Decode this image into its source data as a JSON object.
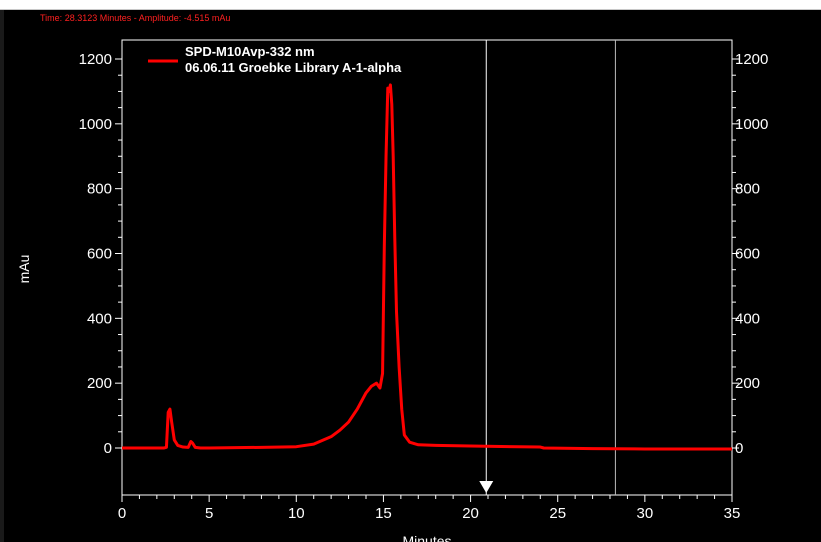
{
  "status": {
    "time_label": "Time:",
    "time_value": "28.3123 Minutes",
    "separator": "-",
    "amplitude_label": "Amplitude:",
    "amplitude_value": "-4.515 mAu"
  },
  "chart_data": {
    "type": "line",
    "title": "",
    "xlabel": "Minutes",
    "ylabel": "mAu",
    "xlim": [
      0,
      35
    ],
    "ylim": [
      -130,
      1260
    ],
    "x_ticks": [
      0,
      5,
      10,
      15,
      20,
      25,
      30,
      35
    ],
    "y_ticks": [
      0,
      200,
      400,
      600,
      800,
      1000,
      1200
    ],
    "grid": false,
    "legend_position": "top-left",
    "legend": [
      "SPD-M10Avp-332 nm",
      "06.06.11 Groebke Library A-1-alpha"
    ],
    "series": [
      {
        "name": "SPD-M10Avp-332 nm",
        "color": "#ff0000",
        "x": [
          0,
          2.4,
          2.55,
          2.65,
          2.75,
          2.85,
          3.0,
          3.2,
          3.5,
          3.8,
          3.95,
          4.05,
          4.2,
          4.5,
          5,
          8,
          10,
          11,
          12,
          12.5,
          13,
          13.5,
          14,
          14.3,
          14.6,
          14.8,
          14.95,
          15.05,
          15.15,
          15.25,
          15.32,
          15.4,
          15.48,
          15.56,
          15.65,
          15.75,
          15.9,
          16.05,
          16.2,
          16.5,
          17,
          18,
          20,
          24,
          24.2,
          27,
          30,
          35
        ],
        "y": [
          0,
          0,
          2,
          110,
          120,
          80,
          25,
          8,
          3,
          2,
          20,
          15,
          2,
          0,
          0,
          2,
          4,
          12,
          35,
          55,
          80,
          120,
          170,
          190,
          200,
          185,
          230,
          620,
          900,
          1110,
          1100,
          1120,
          1060,
          900,
          650,
          420,
          250,
          120,
          40,
          18,
          10,
          8,
          6,
          3,
          0,
          -2,
          -3,
          -3
        ]
      }
    ],
    "markers": [
      {
        "x": 20.9,
        "label": "cursor marker"
      },
      {
        "x": 28.31,
        "label": "time cursor"
      }
    ]
  }
}
